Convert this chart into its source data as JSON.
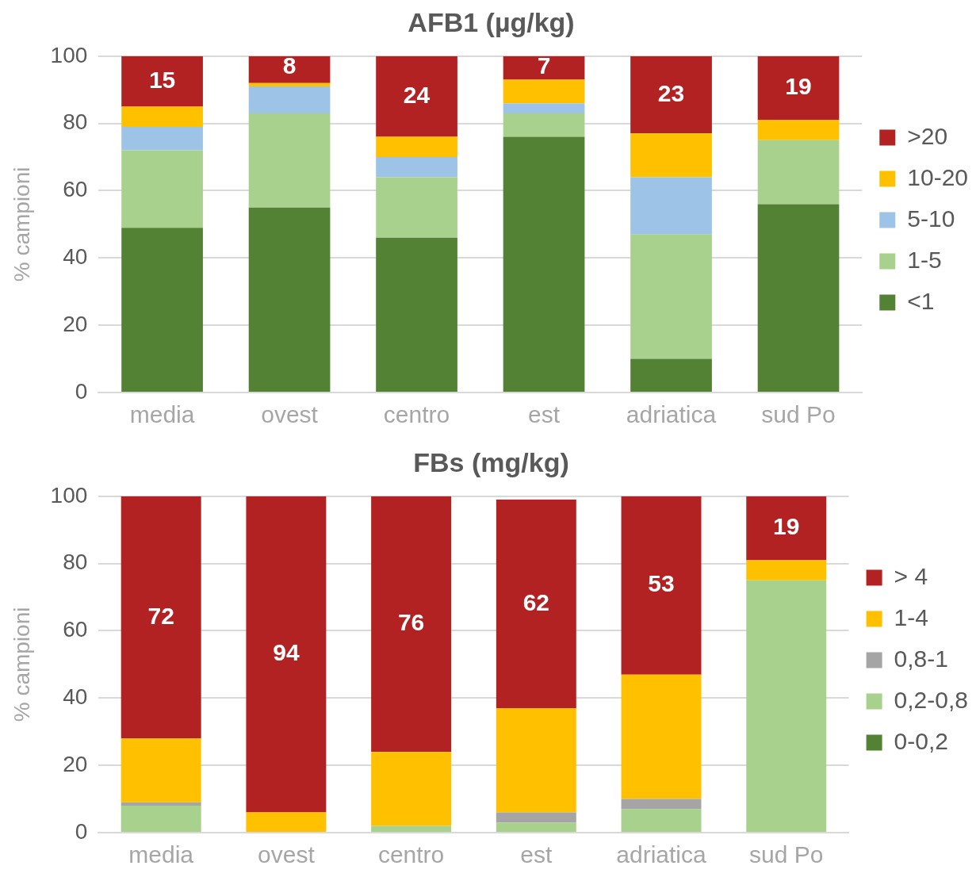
{
  "chart_data": [
    {
      "type": "bar",
      "title": "AFB1 (µg/kg)",
      "ylabel": "% campioni",
      "stacked": true,
      "categories": [
        "media",
        "ovest",
        "centro",
        "est",
        "adriatica",
        "sud Po"
      ],
      "ylim": [
        0,
        100
      ],
      "yticks": [
        0,
        20,
        40,
        60,
        80,
        100
      ],
      "grid": "y",
      "legend": "right",
      "series": [
        {
          "name": "<1",
          "color": "#548235",
          "values": [
            49,
            55,
            46,
            76,
            10,
            56
          ]
        },
        {
          "name": "1-5",
          "color": "#a9d18e",
          "values": [
            23,
            28,
            18,
            7,
            37,
            19
          ]
        },
        {
          "name": "5-10",
          "color": "#9dc3e6",
          "values": [
            7,
            8,
            6,
            3,
            17,
            0
          ]
        },
        {
          "name": "10-20",
          "color": "#ffc000",
          "values": [
            6,
            1,
            6,
            7,
            13,
            6
          ]
        },
        {
          "name": ">20",
          "color": "#b22222",
          "values": [
            15,
            8,
            24,
            7,
            23,
            19
          ],
          "value_labels": [
            "15",
            "8",
            "24",
            "7",
            "23",
            "19"
          ]
        }
      ]
    },
    {
      "type": "bar",
      "title": "FBs (mg/kg)",
      "ylabel": "% campioni",
      "stacked": true,
      "categories": [
        "media",
        "ovest",
        "centro",
        "est",
        "adriatica",
        "sud Po"
      ],
      "ylim": [
        0,
        100
      ],
      "yticks": [
        0,
        20,
        40,
        60,
        80,
        100
      ],
      "grid": "y",
      "legend": "right",
      "series": [
        {
          "name": "0-0,2",
          "color": "#548235",
          "values": [
            0,
            0,
            0,
            0,
            0,
            0
          ]
        },
        {
          "name": "0,2-0,8",
          "color": "#a9d18e",
          "values": [
            8,
            0,
            2,
            3,
            7,
            75
          ]
        },
        {
          "name": "0,8-1",
          "color": "#a5a5a5",
          "values": [
            1,
            0,
            0,
            3,
            3,
            0
          ]
        },
        {
          "name": "1-4",
          "color": "#ffc000",
          "values": [
            19,
            6,
            22,
            31,
            37,
            6
          ]
        },
        {
          "name": "> 4",
          "color": "#b22222",
          "values": [
            72,
            94,
            76,
            62,
            53,
            19
          ],
          "value_labels": [
            "72",
            "94",
            "76",
            "62",
            "53",
            "19"
          ]
        }
      ]
    }
  ]
}
